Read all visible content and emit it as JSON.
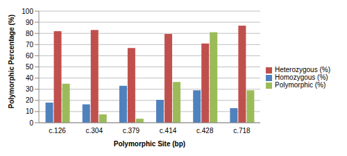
{
  "chart_data": {
    "type": "bar",
    "x_label": "Polymorphic Site (bp)",
    "y_label": "Polymorphic Percentage (%)",
    "categories": [
      "c.126",
      "c.304",
      "c.379",
      "c.414",
      "c.428",
      "c.718"
    ],
    "series": [
      {
        "name": "Homozygous (%)",
        "color": "#4f81bd",
        "values": [
          18,
          16.5,
          33,
          20.5,
          29,
          13
        ]
      },
      {
        "name": "Heterozygous (%)",
        "color": "#c0504d",
        "values": [
          82,
          83,
          67,
          79.5,
          71,
          87
        ]
      },
      {
        "name": "Polymorphic (%)",
        "color": "#9bbb59",
        "values": [
          35,
          7.5,
          3.5,
          36.5,
          81,
          29
        ]
      }
    ],
    "ylim": [
      0,
      100
    ],
    "yticks": [
      0,
      10,
      20,
      30,
      40,
      50,
      60,
      70,
      80,
      90,
      100
    ],
    "grid": true,
    "legend": "right"
  }
}
